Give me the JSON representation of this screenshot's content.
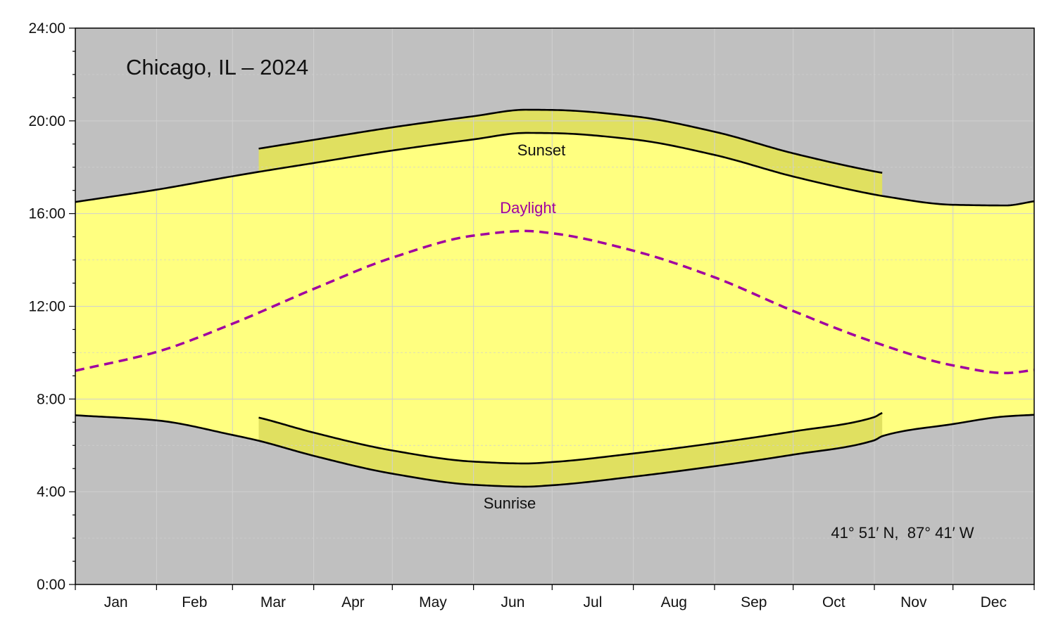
{
  "chart_data": {
    "type": "area",
    "title": "Chicago, IL – 2024",
    "coordinates": "41° 51′ N,  87° 41′ W",
    "ylim": [
      0,
      24
    ],
    "xlim": [
      0,
      366
    ],
    "y_ticks": [
      0,
      4,
      8,
      12,
      16,
      20,
      24
    ],
    "y_tick_labels": [
      "0:00",
      "4:00",
      "8:00",
      "12:00",
      "16:00",
      "20:00",
      "24:00"
    ],
    "month_labels": [
      "Jan",
      "Feb",
      "Mar",
      "Apr",
      "May",
      "Jun",
      "Jul",
      "Aug",
      "Sep",
      "Oct",
      "Nov",
      "Dec"
    ],
    "month_starts": [
      0,
      31,
      60,
      91,
      121,
      152,
      182,
      213,
      244,
      274,
      305,
      335,
      366
    ],
    "dst_period": [
      70,
      308
    ],
    "dst_offset_hours": 1,
    "labels": {
      "sunset": "Sunset",
      "sunrise": "Sunrise",
      "daylight": "Daylight"
    },
    "series": [
      {
        "name": "Sunset",
        "x": [
          0,
          31,
          60,
          70,
          91,
          121,
          152,
          172,
          182,
          213,
          244,
          274,
          305,
          308,
          335,
          355,
          366
        ],
        "values": [
          16.5,
          17.03,
          17.61,
          17.8,
          18.18,
          18.72,
          19.2,
          19.48,
          19.47,
          19.2,
          18.53,
          17.6,
          16.82,
          16.76,
          16.38,
          16.35,
          16.53
        ]
      },
      {
        "name": "Sunrise",
        "x": [
          0,
          31,
          60,
          70,
          91,
          121,
          152,
          172,
          182,
          213,
          244,
          274,
          305,
          308,
          335,
          355,
          366
        ],
        "values": [
          7.3,
          7.08,
          6.45,
          6.2,
          5.55,
          4.78,
          4.3,
          4.22,
          4.28,
          4.65,
          5.1,
          5.6,
          6.22,
          6.4,
          6.92,
          7.25,
          7.32
        ]
      },
      {
        "name": "Daylight",
        "x": [
          0,
          31,
          60,
          91,
          121,
          152,
          172,
          182,
          213,
          244,
          274,
          305,
          335,
          355,
          366
        ],
        "values": [
          9.22,
          10.03,
          11.25,
          12.75,
          14.1,
          15.05,
          15.25,
          15.15,
          14.4,
          13.25,
          11.8,
          10.45,
          9.45,
          9.12,
          9.25
        ]
      }
    ],
    "colors": {
      "night": "#c0c0c0",
      "daylight_fill": "#ffff80",
      "dst_fill": "#e0e060",
      "line": "#000000",
      "daylight_line": "#a000a0",
      "grid": "#d0d0d0"
    }
  }
}
